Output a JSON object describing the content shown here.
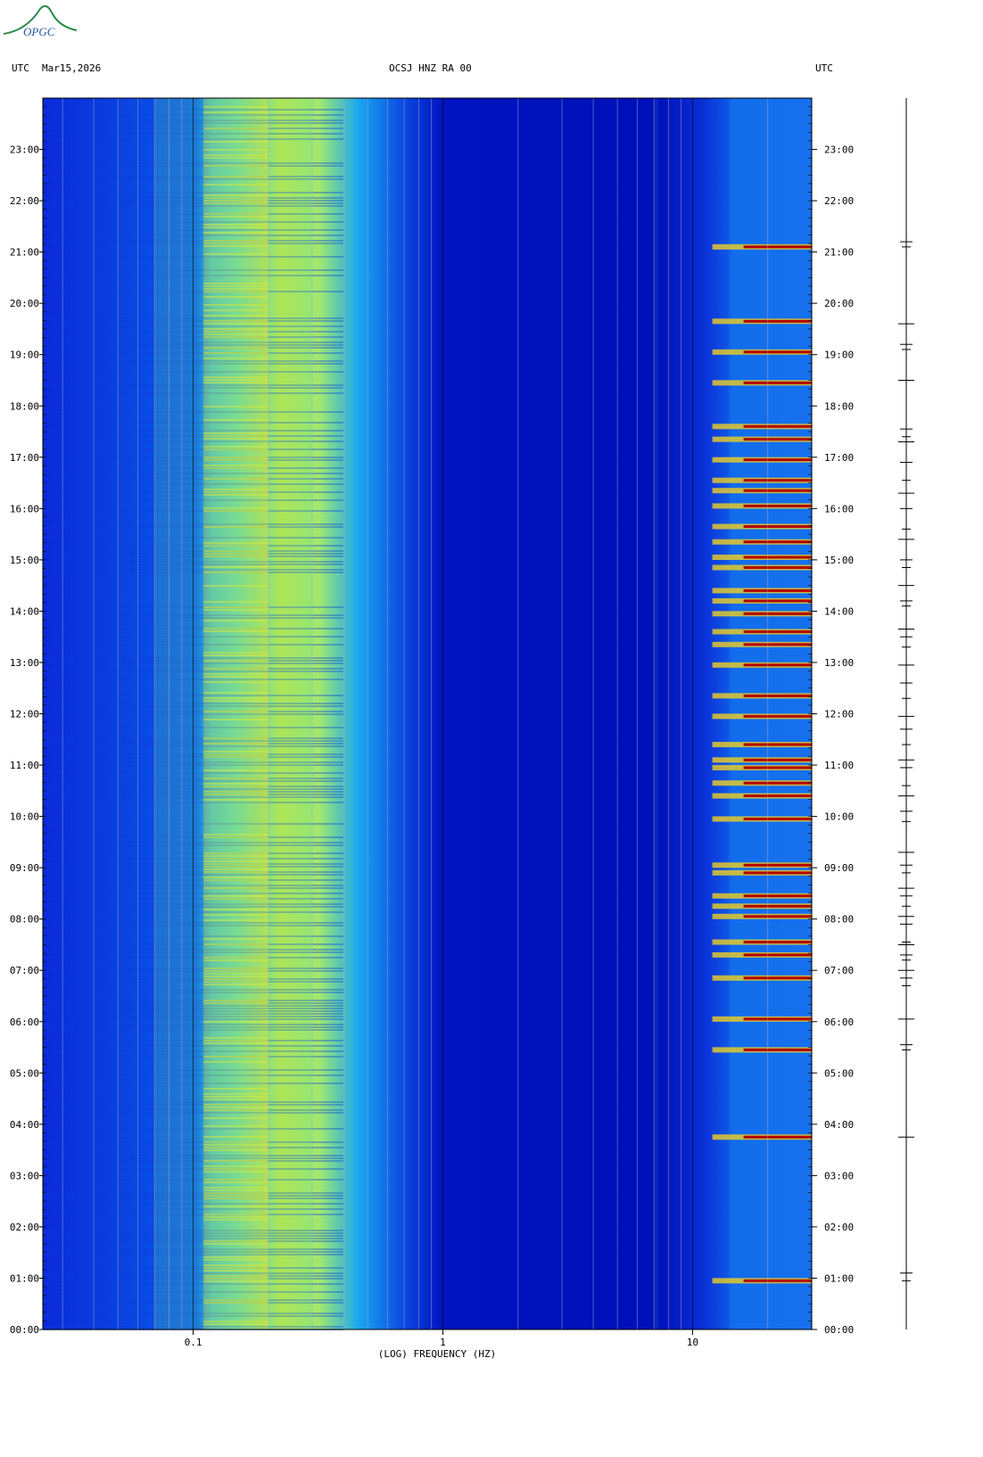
{
  "header": {
    "left_utc": "UTC",
    "date": "Mar15,2026",
    "station": "OCSJ HNZ RA 00",
    "right_utc": "UTC"
  },
  "logo": {
    "text": "OPGC"
  },
  "colors": {
    "background": "#0000b4",
    "low": "#0a2ad8",
    "mid": "#16d8f0",
    "high": "#f0e020",
    "peak": "#b40000"
  },
  "chart_data": {
    "type": "heatmap",
    "title": "",
    "xlabel": "(LOG) FREQUENCY (HZ)",
    "ylabel": "",
    "x_scale": "log",
    "xlim": [
      0.025,
      30
    ],
    "ylim": [
      "00:00",
      "24:00"
    ],
    "x_tick_labels": [
      {
        "value": 0.1,
        "label": "0.1"
      },
      {
        "value": 1,
        "label": "1"
      },
      {
        "value": 10,
        "label": "10"
      }
    ],
    "y_tick_labels": [
      "00:00",
      "01:00",
      "02:00",
      "03:00",
      "04:00",
      "05:00",
      "06:00",
      "07:00",
      "08:00",
      "09:00",
      "10:00",
      "11:00",
      "12:00",
      "13:00",
      "14:00",
      "15:00",
      "16:00",
      "17:00",
      "18:00",
      "19:00",
      "20:00",
      "21:00",
      "22:00",
      "23:00"
    ],
    "bands": [
      {
        "f_from": 0.07,
        "f_to": 0.3,
        "level": 0.7,
        "description_label": ""
      },
      {
        "f_from": 0.11,
        "f_to": 0.2,
        "level": 0.85,
        "description_label": ""
      },
      {
        "f_from": 7,
        "f_to": 7.3,
        "level": 0.45,
        "description_label": ""
      },
      {
        "f_from": 14,
        "f_to": 30,
        "level": 0.55,
        "description_label": ""
      }
    ],
    "events_hours": [
      0.95,
      3.75,
      5.45,
      6.05,
      6.85,
      7.3,
      7.55,
      8.05,
      8.25,
      8.45,
      8.9,
      9.05,
      9.95,
      10.4,
      10.65,
      10.95,
      11.1,
      11.4,
      11.95,
      12.35,
      12.95,
      13.35,
      13.6,
      13.95,
      14.2,
      14.4,
      14.85,
      15.05,
      15.35,
      15.65,
      16.05,
      16.35,
      16.55,
      16.95,
      17.35,
      17.6,
      18.45,
      19.05,
      19.65,
      21.1
    ],
    "trace_ticks_hours": [
      0.95,
      1.1,
      3.75,
      5.45,
      5.55,
      6.05,
      6.7,
      6.85,
      7.0,
      7.2,
      7.3,
      7.5,
      7.55,
      7.9,
      8.05,
      8.25,
      8.45,
      8.6,
      8.9,
      9.05,
      9.3,
      9.9,
      10.1,
      10.4,
      10.6,
      10.95,
      11.1,
      11.4,
      11.7,
      11.95,
      12.3,
      12.6,
      12.95,
      13.3,
      13.5,
      13.65,
      14.1,
      14.2,
      14.5,
      14.85,
      15.0,
      15.4,
      15.6,
      16.0,
      16.3,
      16.55,
      16.9,
      17.3,
      17.4,
      17.55,
      18.5,
      19.1,
      19.2,
      19.6,
      21.1,
      21.2
    ]
  }
}
